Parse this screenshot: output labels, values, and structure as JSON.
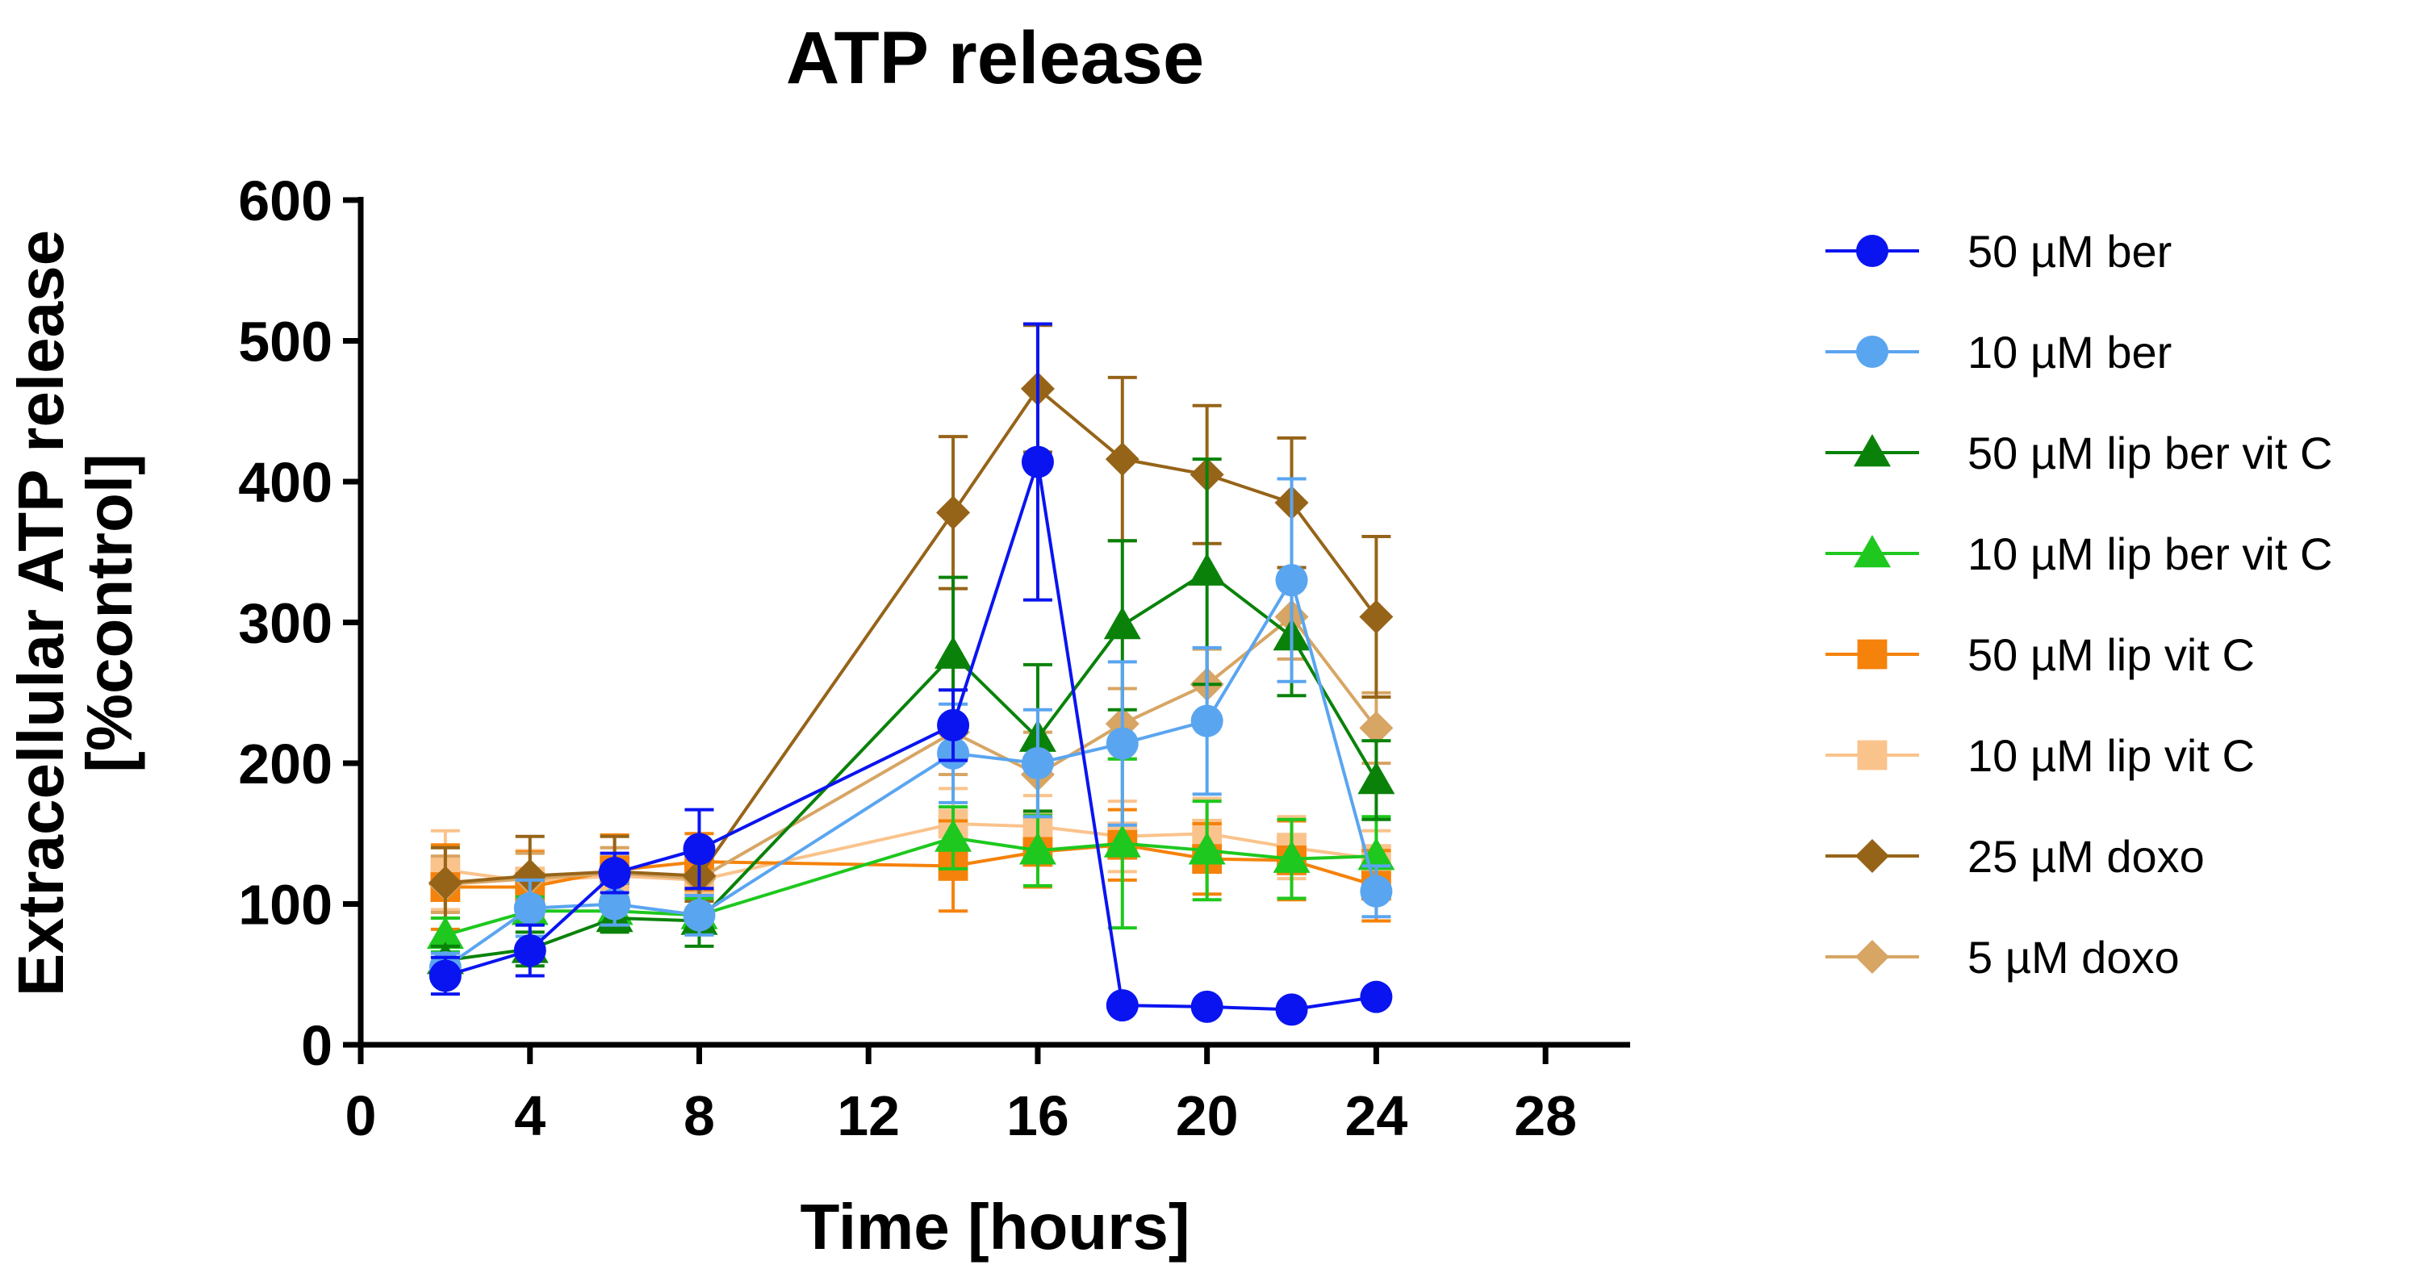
{
  "chart_data": {
    "type": "line",
    "title": "ATP release",
    "xlabel": "Time [hours]",
    "ylabel_lines": [
      "Extracellular ATP release",
      "[%control]"
    ],
    "xlim": [
      0,
      30
    ],
    "ylim": [
      0,
      600
    ],
    "xticks": [
      0,
      4,
      8,
      12,
      16,
      20,
      24,
      28
    ],
    "yticks": [
      0,
      100,
      200,
      300,
      400,
      500,
      600
    ],
    "legend_position": "right",
    "series": [
      {
        "name": "50 µM ber",
        "color": "#0a14f0",
        "marker": "circle",
        "points": [
          {
            "x": 2,
            "y": 49,
            "err": 13
          },
          {
            "x": 4,
            "y": 67,
            "err": 18
          },
          {
            "x": 6,
            "y": 122,
            "err": 14
          },
          {
            "x": 8,
            "y": 139,
            "err": 28
          },
          {
            "x": 14,
            "y": 227,
            "err": 25
          },
          {
            "x": 16,
            "y": 414,
            "err": 98
          },
          {
            "x": 18,
            "y": 28,
            "err": 0
          },
          {
            "x": 20,
            "y": 27,
            "err": 0
          },
          {
            "x": 22,
            "y": 25,
            "err": 0
          },
          {
            "x": 24,
            "y": 34,
            "err": 0
          }
        ]
      },
      {
        "name": "10 µM ber",
        "color": "#5aa5f0",
        "marker": "circle",
        "points": [
          {
            "x": 2,
            "y": 55,
            "err": 10
          },
          {
            "x": 4,
            "y": 97,
            "err": 20
          },
          {
            "x": 6,
            "y": 100,
            "err": 15
          },
          {
            "x": 8,
            "y": 92,
            "err": 14
          },
          {
            "x": 14,
            "y": 207,
            "err": 35
          },
          {
            "x": 16,
            "y": 200,
            "err": 38
          },
          {
            "x": 18,
            "y": 214,
            "err": 58
          },
          {
            "x": 20,
            "y": 230,
            "err": 52
          },
          {
            "x": 22,
            "y": 330,
            "err": 72
          },
          {
            "x": 24,
            "y": 109,
            "err": 18
          }
        ]
      },
      {
        "name": "50 µM lip ber vit C",
        "color": "#0a820a",
        "marker": "triangle",
        "points": [
          {
            "x": 2,
            "y": 60,
            "err": 10
          },
          {
            "x": 4,
            "y": 68,
            "err": 12
          },
          {
            "x": 6,
            "y": 90,
            "err": 10
          },
          {
            "x": 8,
            "y": 88,
            "err": 18
          },
          {
            "x": 14,
            "y": 277,
            "err": 55
          },
          {
            "x": 16,
            "y": 218,
            "err": 52
          },
          {
            "x": 18,
            "y": 298,
            "err": 60
          },
          {
            "x": 20,
            "y": 336,
            "err": 80
          },
          {
            "x": 22,
            "y": 290,
            "err": 42
          },
          {
            "x": 24,
            "y": 188,
            "err": 28
          }
        ]
      },
      {
        "name": "10 µM lip ber vit C",
        "color": "#1ec81e",
        "marker": "triangle",
        "points": [
          {
            "x": 2,
            "y": 78,
            "err": 12
          },
          {
            "x": 4,
            "y": 95,
            "err": 10
          },
          {
            "x": 6,
            "y": 95,
            "err": 10
          },
          {
            "x": 8,
            "y": 92,
            "err": 12
          },
          {
            "x": 14,
            "y": 147,
            "err": 22
          },
          {
            "x": 16,
            "y": 138,
            "err": 25
          },
          {
            "x": 18,
            "y": 143,
            "err": 60
          },
          {
            "x": 20,
            "y": 138,
            "err": 35
          },
          {
            "x": 22,
            "y": 132,
            "err": 28
          },
          {
            "x": 24,
            "y": 134,
            "err": 28
          }
        ]
      },
      {
        "name": "50 µM lip vit C",
        "color": "#f5820a",
        "marker": "square",
        "points": [
          {
            "x": 2,
            "y": 112,
            "err": 30
          },
          {
            "x": 4,
            "y": 112,
            "err": 25
          },
          {
            "x": 6,
            "y": 124,
            "err": 25
          },
          {
            "x": 8,
            "y": 130,
            "err": 20
          },
          {
            "x": 14,
            "y": 127,
            "err": 32
          },
          {
            "x": 16,
            "y": 137,
            "err": 25
          },
          {
            "x": 18,
            "y": 142,
            "err": 25
          },
          {
            "x": 20,
            "y": 132,
            "err": 25
          },
          {
            "x": 22,
            "y": 131,
            "err": 28
          },
          {
            "x": 24,
            "y": 113,
            "err": 25
          }
        ]
      },
      {
        "name": "10 µM lip vit C",
        "color": "#fac38c",
        "marker": "square",
        "points": [
          {
            "x": 2,
            "y": 124,
            "err": 28
          },
          {
            "x": 4,
            "y": 116,
            "err": 22
          },
          {
            "x": 6,
            "y": 120,
            "err": 20
          },
          {
            "x": 8,
            "y": 117,
            "err": 20
          },
          {
            "x": 14,
            "y": 157,
            "err": 25
          },
          {
            "x": 16,
            "y": 155,
            "err": 22
          },
          {
            "x": 18,
            "y": 148,
            "err": 25
          },
          {
            "x": 20,
            "y": 150,
            "err": 25
          },
          {
            "x": 22,
            "y": 140,
            "err": 22
          },
          {
            "x": 24,
            "y": 132,
            "err": 20
          }
        ]
      },
      {
        "name": "25 µM doxo",
        "color": "#966419",
        "marker": "diamond",
        "points": [
          {
            "x": 2,
            "y": 115,
            "err": 25
          },
          {
            "x": 4,
            "y": 120,
            "err": 28
          },
          {
            "x": 6,
            "y": 123,
            "err": 25
          },
          {
            "x": 8,
            "y": 120,
            "err": 18
          },
          {
            "x": 14,
            "y": 378,
            "err": 54
          },
          {
            "x": 16,
            "y": 466,
            "err": 45
          },
          {
            "x": 18,
            "y": 416,
            "err": 58
          },
          {
            "x": 20,
            "y": 405,
            "err": 49
          },
          {
            "x": 22,
            "y": 385,
            "err": 46
          },
          {
            "x": 24,
            "y": 304,
            "err": 57
          }
        ]
      },
      {
        "name": "5 µM doxo",
        "color": "#d7a564",
        "marker": "diamond",
        "points": [
          {
            "x": 2,
            "y": 114,
            "err": 20
          },
          {
            "x": 4,
            "y": 118,
            "err": 18
          },
          {
            "x": 6,
            "y": 122,
            "err": 18
          },
          {
            "x": 8,
            "y": 118,
            "err": 15
          },
          {
            "x": 14,
            "y": 222,
            "err": 30
          },
          {
            "x": 16,
            "y": 192,
            "err": 30
          },
          {
            "x": 18,
            "y": 228,
            "err": 25
          },
          {
            "x": 20,
            "y": 256,
            "err": 25
          },
          {
            "x": 22,
            "y": 304,
            "err": 30
          },
          {
            "x": 24,
            "y": 225,
            "err": 25
          }
        ]
      }
    ]
  }
}
